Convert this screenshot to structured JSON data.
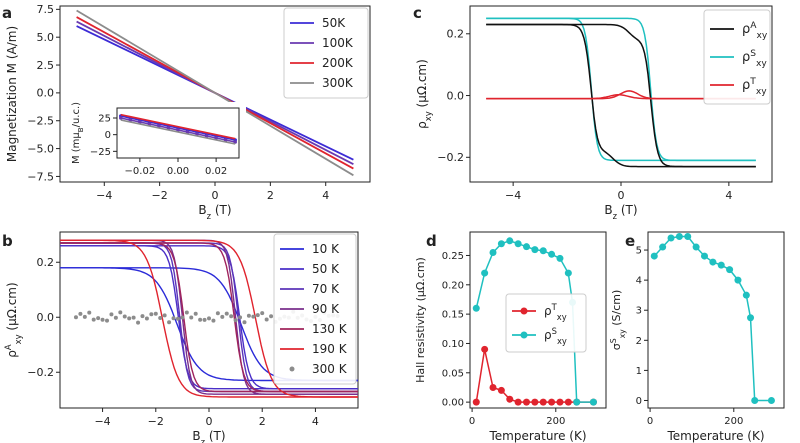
{
  "panel_labels": {
    "a": "a",
    "b": "b",
    "c": "c",
    "d": "d",
    "e": "e"
  },
  "chart_data": [
    {
      "panel": "a",
      "type": "line",
      "xlabel": "B_z (T)",
      "ylabel": "Magnetization M (A/m)",
      "xlim": [
        -5.6,
        5.6
      ],
      "ylim": [
        -8.0,
        7.8
      ],
      "xticks": [
        -4,
        -2,
        0,
        2,
        4
      ],
      "yticks": [
        -7.5,
        -5.0,
        -2.5,
        0.0,
        2.5,
        5.0,
        7.5
      ],
      "ytick_labels": [
        "−7.5",
        "−5.0",
        "−2.5",
        "0.0",
        "2.5",
        "5.0",
        "7.5"
      ],
      "legend_position": "top-right",
      "series": [
        {
          "name": "50K",
          "color": "#3c2bd6",
          "x": [
            -5,
            5
          ],
          "y": [
            6.0,
            -6.0
          ]
        },
        {
          "name": "100K",
          "color": "#6a3ab0",
          "x": [
            -5,
            5
          ],
          "y": [
            6.4,
            -6.4
          ]
        },
        {
          "name": "200K",
          "color": "#e0242e",
          "x": [
            -5,
            5
          ],
          "y": [
            6.8,
            -6.8
          ]
        },
        {
          "name": "300K",
          "color": "#8c8c8c",
          "x": [
            -5,
            5
          ],
          "y": [
            7.4,
            -7.4
          ]
        }
      ],
      "inset": {
        "ylabel": "M (mμ_B/u.c.)",
        "xlim": [
          -0.032,
          0.032
        ],
        "ylim": [
          -35,
          40
        ],
        "xticks": [
          -0.02,
          0.0,
          0.02
        ],
        "xtick_labels": [
          "−0.02",
          "0.00",
          "0.02"
        ],
        "yticks": [
          -25,
          0,
          25
        ],
        "ytick_labels": [
          "−25",
          "0",
          "25"
        ],
        "series": [
          {
            "name": "50K",
            "color": "#3c2bd6",
            "x": [
              -0.03,
              0.03
            ],
            "y": [
              28,
              -8
            ]
          },
          {
            "name": "100K",
            "color": "#6a3ab0",
            "x": [
              -0.03,
              0.03
            ],
            "y": [
              25,
              -11
            ]
          },
          {
            "name": "200K",
            "color": "#e0242e",
            "x": [
              -0.03,
              0.03
            ],
            "y": [
              30,
              -6
            ]
          },
          {
            "name": "300K",
            "color": "#8c8c8c",
            "x": [
              -0.03,
              0.03
            ],
            "y": [
              22,
              -14
            ]
          }
        ]
      }
    },
    {
      "panel": "b",
      "type": "line",
      "xlabel": "B_z (T)",
      "ylabel": "ρ^A_xy (μΩ.cm)",
      "xlim": [
        -5.6,
        5.6
      ],
      "ylim": [
        -0.33,
        0.31
      ],
      "xticks": [
        -4,
        -2,
        0,
        2,
        4
      ],
      "yticks": [
        -0.2,
        0.0,
        0.2
      ],
      "ytick_labels": [
        "−0.2",
        "0.0",
        "0.2"
      ],
      "legend_position": "right",
      "series": [
        {
          "name": "10 K",
          "color": "#2b2bd8",
          "saturation": 0.18,
          "low_saturation": -0.23,
          "coercive_field": 1.2,
          "width": 0.8,
          "style": "line"
        },
        {
          "name": "50 K",
          "color": "#4a2fc8",
          "saturation": 0.26,
          "low_saturation": -0.26,
          "coercive_field": 1.15,
          "width": 0.35,
          "style": "line"
        },
        {
          "name": "70 K",
          "color": "#5b34b8",
          "saturation": 0.27,
          "low_saturation": -0.27,
          "coercive_field": 1.1,
          "width": 0.3,
          "style": "line"
        },
        {
          "name": "90 K",
          "color": "#7a2f8c",
          "saturation": 0.28,
          "low_saturation": -0.28,
          "coercive_field": 1.0,
          "width": 0.3,
          "style": "line"
        },
        {
          "name": "130 K",
          "color": "#a0245c",
          "saturation": 0.27,
          "low_saturation": -0.27,
          "coercive_field": 0.95,
          "width": 0.35,
          "style": "line"
        },
        {
          "name": "190 K",
          "color": "#e0242e",
          "saturation": 0.28,
          "low_saturation": -0.29,
          "coercive_field": 1.75,
          "width": 0.6,
          "style": "line"
        },
        {
          "name": "300 K",
          "color": "#8c8c8c",
          "saturation": 0.0,
          "low_saturation": 0.0,
          "coercive_field": 0.0,
          "width": 0.0,
          "style": "scatter"
        }
      ]
    },
    {
      "panel": "c",
      "type": "line",
      "xlabel": "B_z (T)",
      "ylabel": "ρ_xy (μΩ.cm)",
      "xlim": [
        -5.6,
        5.6
      ],
      "ylim": [
        -0.28,
        0.29
      ],
      "xticks": [
        -4,
        0,
        4
      ],
      "xtick_labels": [
        "−4",
        "0",
        "4"
      ],
      "yticks": [
        -0.2,
        0.0,
        0.2
      ],
      "ytick_labels": [
        "−0.2",
        "0.0",
        "0.2"
      ],
      "legend_position": "top-right",
      "series": [
        {
          "name": "ρ^A_xy",
          "color": "#111111"
        },
        {
          "name": "ρ^S_xy",
          "color": "#1fc0c0"
        },
        {
          "name": "ρ^T_xy",
          "color": "#e0242e"
        }
      ],
      "curves": {
        "A": {
          "saturation": 0.23,
          "coercive_field": 1.1,
          "width": 0.25,
          "overshoot": 0.04
        },
        "S": {
          "saturation": 0.25,
          "low_saturation": -0.21,
          "coercive_field": 1.1,
          "width": 0.22
        },
        "T": {
          "peak": 0.025,
          "peak_field": 0.3,
          "baseline": -0.01
        }
      }
    },
    {
      "panel": "d",
      "type": "line",
      "xlabel": "Temperature (K)",
      "ylabel": "Hall resistivity (μΩ.cm)",
      "xlim": [
        -5,
        320
      ],
      "ylim": [
        -0.01,
        0.29
      ],
      "xticks": [
        0,
        200
      ],
      "yticks": [
        0.0,
        0.05,
        0.1,
        0.15,
        0.2,
        0.25
      ],
      "ytick_labels": [
        "0.00",
        "0.05",
        "0.10",
        "0.15",
        "0.20",
        "0.25"
      ],
      "legend_position": "center-right",
      "series": [
        {
          "name": "ρ^T_xy",
          "color": "#e0242e",
          "x": [
            10,
            30,
            50,
            70,
            90,
            110,
            130,
            150,
            170,
            190,
            210,
            230,
            250,
            290
          ],
          "y": [
            0.0,
            0.09,
            0.025,
            0.02,
            0.005,
            0.0,
            0.0,
            0.0,
            0.0,
            0.0,
            0.0,
            0.0,
            0.0,
            0.0
          ]
        },
        {
          "name": "ρ^S_xy",
          "color": "#1fc0c0",
          "x": [
            10,
            30,
            50,
            70,
            90,
            110,
            130,
            150,
            170,
            190,
            210,
            230,
            240,
            250,
            290
          ],
          "y": [
            0.16,
            0.22,
            0.255,
            0.27,
            0.275,
            0.27,
            0.265,
            0.26,
            0.258,
            0.252,
            0.245,
            0.22,
            0.17,
            0.0,
            0.0
          ]
        }
      ]
    },
    {
      "panel": "e",
      "type": "line",
      "xlabel": "Temperature (K)",
      "ylabel": "σ^S_xy (S/cm)",
      "xlim": [
        -5,
        320
      ],
      "ylim": [
        -0.25,
        5.6
      ],
      "xticks": [
        0,
        200
      ],
      "yticks": [
        0,
        1,
        2,
        3,
        4,
        5
      ],
      "series": [
        {
          "name": "σ^S_xy",
          "color": "#1fc0c0",
          "x": [
            10,
            30,
            50,
            70,
            90,
            110,
            130,
            150,
            170,
            190,
            210,
            230,
            240,
            250,
            290
          ],
          "y": [
            4.8,
            5.1,
            5.4,
            5.45,
            5.45,
            5.1,
            4.8,
            4.6,
            4.5,
            4.35,
            4.0,
            3.5,
            2.75,
            0.0,
            0.0
          ]
        }
      ]
    }
  ]
}
